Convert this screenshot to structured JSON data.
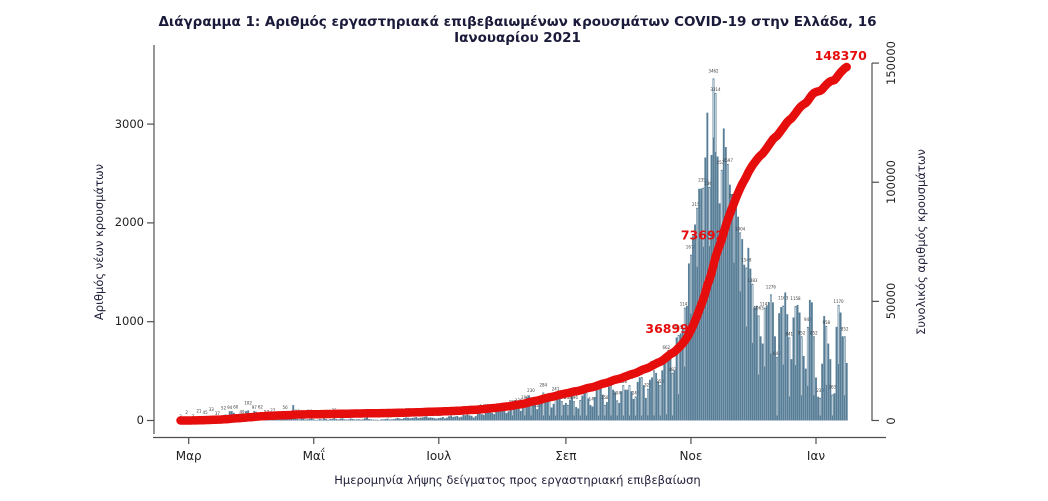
{
  "title": "Διάγραμμα 1: Αριθμός εργαστηριακά επιβεβαιωμένων κρουσμάτων COVID-19 στην Ελλάδα, 16 Ιανουαρίου 2021",
  "chart_data": {
    "type": "bar",
    "subtype": "daily-bars-with-cumulative-line",
    "x_axis": {
      "label": "Ημερομηνία λήψης δείγματος προς εργαστηριακή επιβεβαίωση",
      "tick_labels": [
        "Μαρ",
        "Μαΐ",
        "Ιουλ",
        "Σεπ",
        "Νοε",
        "Ιαν"
      ],
      "tick_day_offsets": [
        4,
        65,
        126,
        188,
        249,
        310
      ]
    },
    "left_axis": {
      "label": "Αριθμός νέων κρουσμάτων",
      "tick_labels": [
        "0",
        "1000",
        "2000",
        "3000"
      ],
      "tick_values": [
        0,
        1000,
        2000,
        3000
      ],
      "range": [
        0,
        3000
      ]
    },
    "right_axis": {
      "label": "Συνολικός αριθμός κρουσμάτων",
      "tick_labels": [
        "0",
        "50000",
        "100000",
        "150000"
      ],
      "tick_values": [
        0,
        50000,
        100000,
        150000
      ],
      "range": [
        0,
        150000
      ]
    },
    "bar_series": {
      "name": "Αριθμός νέων κρουσμάτων",
      "daily_values": [
        3,
        1,
        1,
        2,
        4,
        7,
        7,
        10,
        10,
        21,
        31,
        17,
        45,
        37,
        21,
        33,
        35,
        46,
        37,
        21,
        48,
        52,
        61,
        31,
        94,
        95,
        78,
        60,
        48,
        71,
        49,
        56,
        95,
        102,
        21,
        71,
        97,
        88,
        74,
        62,
        48,
        77,
        53,
        42,
        36,
        27,
        31,
        44,
        25,
        15,
        47,
        56,
        22,
        18,
        28,
        156,
        24,
        16,
        11,
        26,
        19,
        10,
        12,
        16,
        22,
        12,
        6,
        8,
        15,
        10,
        22,
        16,
        8,
        14,
        15,
        25,
        15,
        10,
        19,
        23,
        12,
        9,
        11,
        21,
        15,
        10,
        12,
        13,
        9,
        12,
        23,
        32,
        15,
        11,
        9,
        8,
        8,
        5,
        12,
        11,
        15,
        19,
        10,
        12,
        14,
        20,
        27,
        19,
        15,
        24,
        31,
        28,
        22,
        26,
        29,
        35,
        24,
        28,
        31,
        37,
        43,
        29,
        31,
        28,
        23,
        19,
        25,
        28,
        35,
        22,
        29,
        43,
        50,
        36,
        41,
        47,
        32,
        38,
        58,
        54,
        60,
        52,
        48,
        31,
        44,
        72,
        85,
        64,
        58,
        90,
        110,
        95,
        78,
        65,
        102,
        124,
        96,
        110,
        121,
        75,
        93,
        124,
        153,
        204,
        153,
        126,
        98,
        142,
        196,
        235,
        254,
        230,
        208,
        164,
        115,
        222,
        248,
        284,
        254,
        228,
        197,
        132,
        169,
        241,
        270,
        228,
        196,
        158,
        178,
        158,
        211,
        244,
        196,
        136,
        122,
        208,
        252,
        283,
        286,
        224,
        156,
        142,
        238,
        310,
        322,
        358,
        262,
        158,
        186,
        342,
        358,
        312,
        286,
        204,
        178,
        296,
        358,
        312,
        312,
        358,
        296,
        218,
        242,
        391,
        436,
        439,
        358,
        229,
        322,
        412,
        436,
        508,
        482,
        396,
        358,
        508,
        629,
        662,
        715,
        667,
        482,
        508,
        841,
        865,
        882,
        935,
        1142,
        1159,
        1590,
        1678,
        1866,
        1984,
        2153,
        2346,
        2348,
        2356,
        2662,
        3116,
        2363,
        2688,
        3462,
        3314,
        2672,
        2198,
        2537,
        2956,
        2768,
        2597,
        2387,
        2291,
        2194,
        2271,
        2063,
        1904,
        1836,
        1577,
        1548,
        1748,
        1537,
        1383,
        1143,
        1163,
        1063,
        852,
        779,
        1142,
        1163,
        1196,
        1276,
        1196,
        852,
        644,
        1086,
        1148,
        1163,
        1296,
        1076,
        841,
        621,
        1043,
        1158,
        1170,
        1093,
        852,
        653,
        525,
        948,
        1221,
        1196,
        852,
        435,
        241,
        230,
        575,
        1058,
        958,
        779,
        621,
        263,
        276,
        948,
        1170,
        1093,
        852,
        852,
        583
      ],
      "peak_value": 3462,
      "peak_day_index": 260
    },
    "line_series": {
      "name": "Συνολικός αριθμός κρουσμάτων",
      "derivation": "cumulative-sum-of-daily-values",
      "final_total": 148370,
      "annotations": [
        {
          "text": "36899",
          "day": 249
        },
        {
          "text": "73692",
          "day": 263
        },
        {
          "text": "148370",
          "day": 325
        }
      ]
    },
    "colors": {
      "bar": "#587e97",
      "line": "#e60d0d",
      "axis": "#4f4f4f",
      "bar_label": "#3c3c3c",
      "title": "#1a1a3a"
    }
  }
}
